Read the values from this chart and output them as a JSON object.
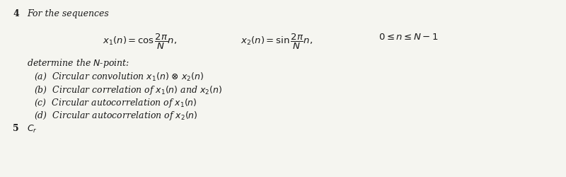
{
  "background_color": "#f5f5f0",
  "problem_number": "4",
  "intro_text": "For the sequences",
  "eq1": "$x_1(n) = \\cos\\dfrac{2\\pi}{N}n,$",
  "eq2": "$x_2(n) = \\sin\\dfrac{2\\pi}{N}n,$",
  "eq3": "$0 \\leq n \\leq N-1$",
  "determine_text": "determine the $N$-point:",
  "item_a": "(a)  Circular convolution $x_1(n)$ ⊗ $x_2(n)$",
  "item_b": "(b)  Circular correlation of $x_1(n)$ and $x_2(n)$",
  "item_c": "(c)  Circular autocorrelation of $x_1(n)$",
  "item_d": "(d)  Circular autocorrelation of $x_2(n)$",
  "bottom_label": "5",
  "bottom_text": "$C_r$",
  "font_size_num": 9,
  "font_size_intro": 9,
  "font_size_eq": 9.5,
  "font_size_determine": 9,
  "font_size_items": 9,
  "text_color": "#1a1a1a"
}
